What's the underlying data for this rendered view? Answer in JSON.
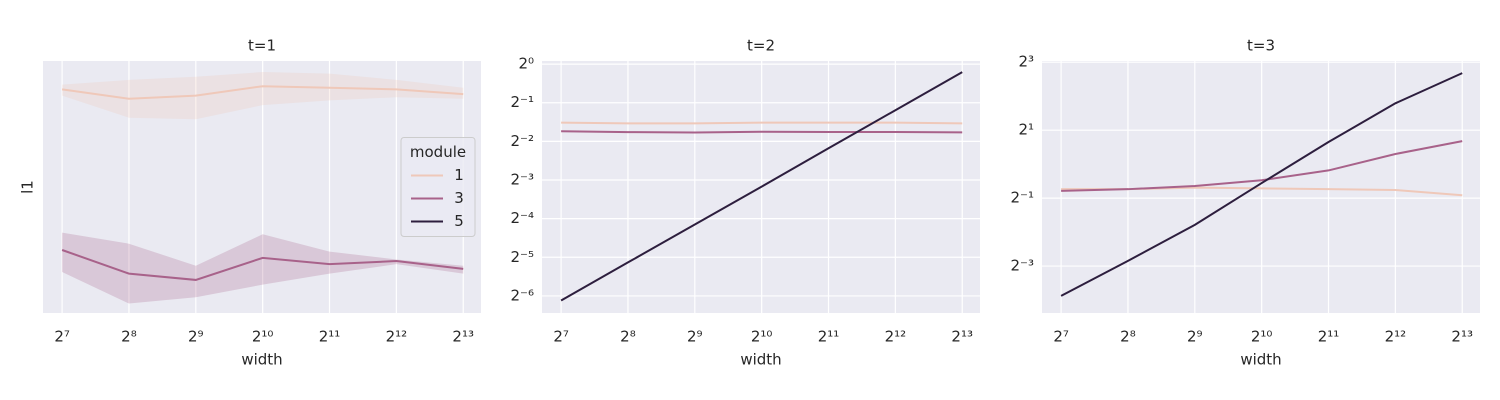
{
  "chart_data": [
    {
      "type": "line",
      "title": "t=1",
      "xlabel": "width",
      "ylabel": "l1",
      "x": [
        128,
        256,
        512,
        1024,
        2048,
        4096,
        8192
      ],
      "xlim": [
        105,
        9850
      ],
      "xlog": true,
      "xticks": [
        {
          "value": 128,
          "label": "2⁷"
        },
        {
          "value": 256,
          "label": "2⁸"
        },
        {
          "value": 512,
          "label": "2⁹"
        },
        {
          "value": 1024,
          "label": "2¹⁰"
        },
        {
          "value": 2048,
          "label": "2¹¹"
        },
        {
          "value": 4096,
          "label": "2¹²"
        },
        {
          "value": 8192,
          "label": "2¹³"
        }
      ],
      "ylim": [
        0.3,
        0.46
      ],
      "ylog": false,
      "yticks": [],
      "grid": true,
      "legend": "right",
      "legend_title": "module",
      "series": [
        {
          "name": "1",
          "color": "#efc8b9",
          "values": [
            0.442,
            0.436,
            0.438,
            0.444,
            0.443,
            0.442,
            0.439
          ],
          "lower": [
            0.438,
            0.424,
            0.423,
            0.432,
            0.435,
            0.437,
            0.436
          ],
          "upper": [
            0.445,
            0.448,
            0.45,
            0.453,
            0.452,
            0.448,
            0.443
          ]
        },
        {
          "name": "3",
          "color": "#a8628a",
          "values": [
            0.34,
            0.325,
            0.321,
            0.335,
            0.331,
            0.333,
            0.328
          ],
          "lower": [
            0.326,
            0.306,
            0.31,
            0.318,
            0.325,
            0.331,
            0.325
          ],
          "upper": [
            0.351,
            0.344,
            0.33,
            0.35,
            0.339,
            0.334,
            0.33
          ]
        },
        {
          "name": "5",
          "color": "#2d1e3e",
          "values": [
            null,
            null,
            null,
            null,
            null,
            null,
            null
          ]
        }
      ]
    },
    {
      "type": "line",
      "title": "t=2",
      "xlabel": "width",
      "x": [
        128,
        256,
        512,
        1024,
        2048,
        4096,
        8192
      ],
      "xlim": [
        105,
        9850
      ],
      "xlog": true,
      "xticks": [
        {
          "value": 128,
          "label": "2⁷"
        },
        {
          "value": 256,
          "label": "2⁸"
        },
        {
          "value": 512,
          "label": "2⁹"
        },
        {
          "value": 1024,
          "label": "2¹⁰"
        },
        {
          "value": 2048,
          "label": "2¹¹"
        },
        {
          "value": 4096,
          "label": "2¹²"
        },
        {
          "value": 8192,
          "label": "2¹³"
        }
      ],
      "ylim": [
        0.0115,
        1.057
      ],
      "ylog": true,
      "yticks": [
        {
          "value": 0.015625,
          "label": "2⁻⁶"
        },
        {
          "value": 0.03125,
          "label": "2⁻⁵"
        },
        {
          "value": 0.0625,
          "label": "2⁻⁴"
        },
        {
          "value": 0.125,
          "label": "2⁻³"
        },
        {
          "value": 0.25,
          "label": "2⁻²"
        },
        {
          "value": 0.5,
          "label": "2⁻¹"
        },
        {
          "value": 1,
          "label": "2⁰"
        }
      ],
      "grid": true,
      "series": [
        {
          "name": "1",
          "color": "#efc8b9",
          "values": [
            0.35,
            0.345,
            0.345,
            0.35,
            0.35,
            0.35,
            0.345
          ]
        },
        {
          "name": "3",
          "color": "#a8628a",
          "values": [
            0.3,
            0.295,
            0.293,
            0.297,
            0.296,
            0.296,
            0.294
          ]
        },
        {
          "name": "5",
          "color": "#2d1e3e",
          "values": [
            0.0144,
            0.0285,
            0.0563,
            0.111,
            0.221,
            0.437,
            0.865
          ]
        }
      ]
    },
    {
      "type": "line",
      "title": "t=3",
      "xlabel": "width",
      "x": [
        128,
        256,
        512,
        1024,
        2048,
        4096,
        8192
      ],
      "xlim": [
        105,
        9850
      ],
      "xlog": true,
      "xticks": [
        {
          "value": 128,
          "label": "2⁷"
        },
        {
          "value": 256,
          "label": "2⁸"
        },
        {
          "value": 512,
          "label": "2⁹"
        },
        {
          "value": 1024,
          "label": "2¹⁰"
        },
        {
          "value": 2048,
          "label": "2¹¹"
        },
        {
          "value": 4096,
          "label": "2¹²"
        },
        {
          "value": 8192,
          "label": "2¹³"
        }
      ],
      "ylim": [
        0.048,
        8.2
      ],
      "ylog": true,
      "yticks": [
        {
          "value": 0.125,
          "label": "2⁻³"
        },
        {
          "value": 0.5,
          "label": "2⁻¹"
        },
        {
          "value": 2,
          "label": "2¹"
        },
        {
          "value": 8,
          "label": "2³"
        }
      ],
      "grid": true,
      "series": [
        {
          "name": "1",
          "color": "#efc8b9",
          "values": [
            0.6,
            0.6,
            0.62,
            0.61,
            0.6,
            0.59,
            0.53
          ]
        },
        {
          "name": "3",
          "color": "#a8628a",
          "values": [
            0.58,
            0.6,
            0.64,
            0.72,
            0.88,
            1.23,
            1.6
          ]
        },
        {
          "name": "5",
          "color": "#2d1e3e",
          "values": [
            0.068,
            0.139,
            0.29,
            0.68,
            1.57,
            3.46,
            6.4
          ]
        }
      ]
    }
  ]
}
